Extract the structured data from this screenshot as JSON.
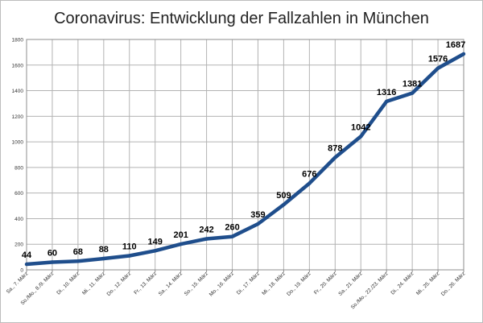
{
  "chart_data": {
    "type": "line",
    "title": "Coronavirus: Entwicklung der Fallzahlen in München",
    "xlabel": "",
    "ylabel": "",
    "categories": [
      "Sa., 7. März",
      "So./Mo., 8./9. März",
      "Di., 10. März",
      "Mi., 11. März",
      "Do., 12. März",
      "Fr., 13. März",
      "Sa., 14. März",
      "So., 15. März",
      "Mo., 16. März",
      "Di., 17. März",
      "Mi., 18. März",
      "Do., 19. März",
      "Fr., 20. März",
      "Sa., 21. März",
      "So./Mo., 22./23. März",
      "Di., 24. März",
      "Mi., 25. März",
      "Do., 26. März"
    ],
    "series": [
      {
        "values": [
          44,
          60,
          68,
          88,
          110,
          149,
          201,
          242,
          260,
          359,
          509,
          676,
          878,
          1042,
          1316,
          1381,
          1576,
          1687
        ]
      }
    ],
    "ylim": [
      0,
      1800
    ],
    "yticks": [
      0,
      200,
      400,
      600,
      800,
      1000,
      1200,
      1400,
      1600,
      1800
    ],
    "grid": true,
    "legend": "none",
    "line_color": "#1f4e8c",
    "grid_color": "#b3b3b3"
  }
}
